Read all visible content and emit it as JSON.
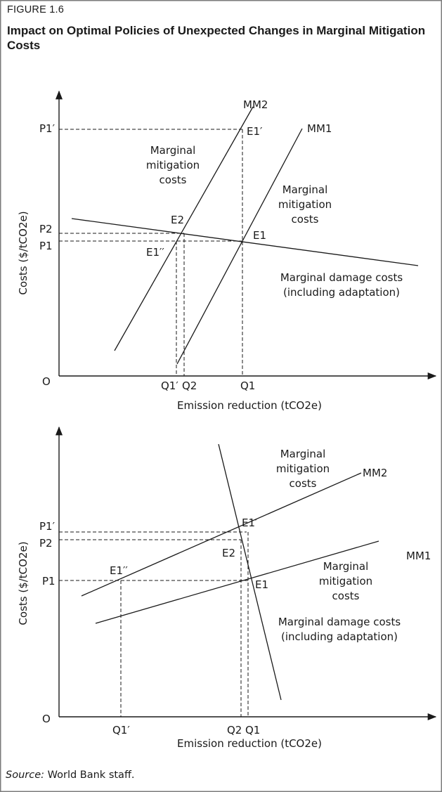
{
  "figure": {
    "label": "FIGURE 1.6",
    "title": "Impact on Optimal Policies of Unexpected Changes in Marginal Mitigation Costs"
  },
  "colors": {
    "header_bg": "#ffffff",
    "frame": "#7d7d7d",
    "ink": "#1a1a1a"
  },
  "top_panel": {
    "origin": "O",
    "y_axis_label": "Costs ($/tCO2e)",
    "x_axis_label": "Emission reduction (tCO2e)",
    "y_ticks": {
      "p1prime": "P1′",
      "p2": "P2",
      "p1": "P1"
    },
    "x_ticks": {
      "q1prime": "Q1′",
      "q2": "Q2",
      "q1": "Q1"
    },
    "points": {
      "e1prime": "E1′",
      "e2": "E2",
      "e1": "E1",
      "e1dprime": "E1′′"
    },
    "curves": {
      "mm2": "MM2",
      "mm1": "MM1"
    },
    "mm2_caption": [
      "Marginal",
      "mitigation",
      "costs"
    ],
    "mm1_caption": [
      "Marginal",
      "mitigation",
      "costs"
    ],
    "damage_caption": [
      "Marginal damage costs",
      "(including adaptation)"
    ]
  },
  "bottom_panel": {
    "origin": "O",
    "y_axis_label": "Costs ($/tCO2e)",
    "x_axis_label": "Emission reduction (tCO2e)",
    "y_ticks": {
      "p1prime": "P1′",
      "p2": "P2",
      "p1": "P1"
    },
    "x_ticks": {
      "q1prime": "Q1′",
      "q2": "Q2",
      "q1": "Q1"
    },
    "points": {
      "e1prime": "E1′",
      "e2": "E2",
      "e1": "E1",
      "e1dprime": "E1′′"
    },
    "curves": {
      "mm2": "MM2",
      "mm1": "MM1"
    },
    "mm2_caption": [
      "Marginal",
      "mitigation",
      "costs"
    ],
    "mm1_caption": [
      "Marginal",
      "mitigation",
      "costs"
    ],
    "damage_caption": [
      "Marginal damage costs",
      "(including adaptation)"
    ]
  },
  "source": {
    "prefix": "Source:",
    "text": "World Bank staff."
  }
}
